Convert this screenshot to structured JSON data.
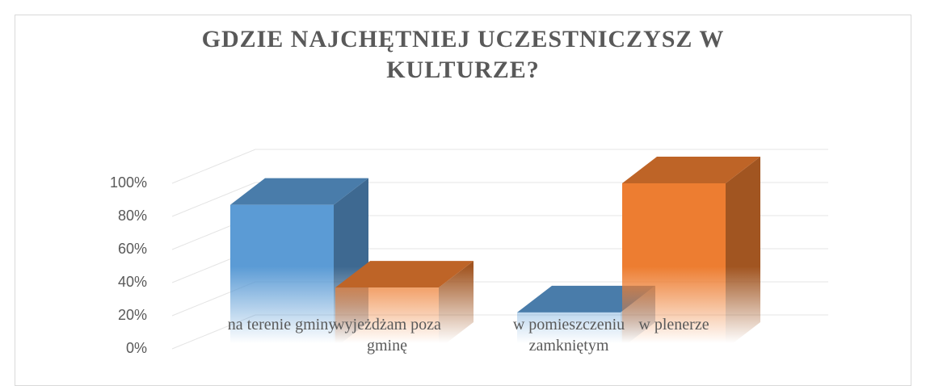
{
  "chart_data": {
    "type": "bar3d",
    "title": "GDZIE NAJCHĘTNIEJ UCZESTNICZYSZ W KULTURZE?",
    "categories": [
      "na terenie gminy",
      "wyjeżdżam poza gminę",
      "w pomieszczeniu zamkniętym",
      "w plenerze"
    ],
    "values": [
      87,
      37,
      22,
      100
    ],
    "colors": [
      "#5b9bd5",
      "#ed7d31",
      "#5b9bd5",
      "#ed7d31"
    ],
    "ylim": [
      0,
      100
    ],
    "yticks": [
      {
        "value": 0,
        "label": "0%"
      },
      {
        "value": 20,
        "label": "20%"
      },
      {
        "value": 40,
        "label": "40%"
      },
      {
        "value": 60,
        "label": "60%"
      },
      {
        "value": 80,
        "label": "80%"
      },
      {
        "value": 100,
        "label": "100%"
      }
    ],
    "grid": true
  }
}
